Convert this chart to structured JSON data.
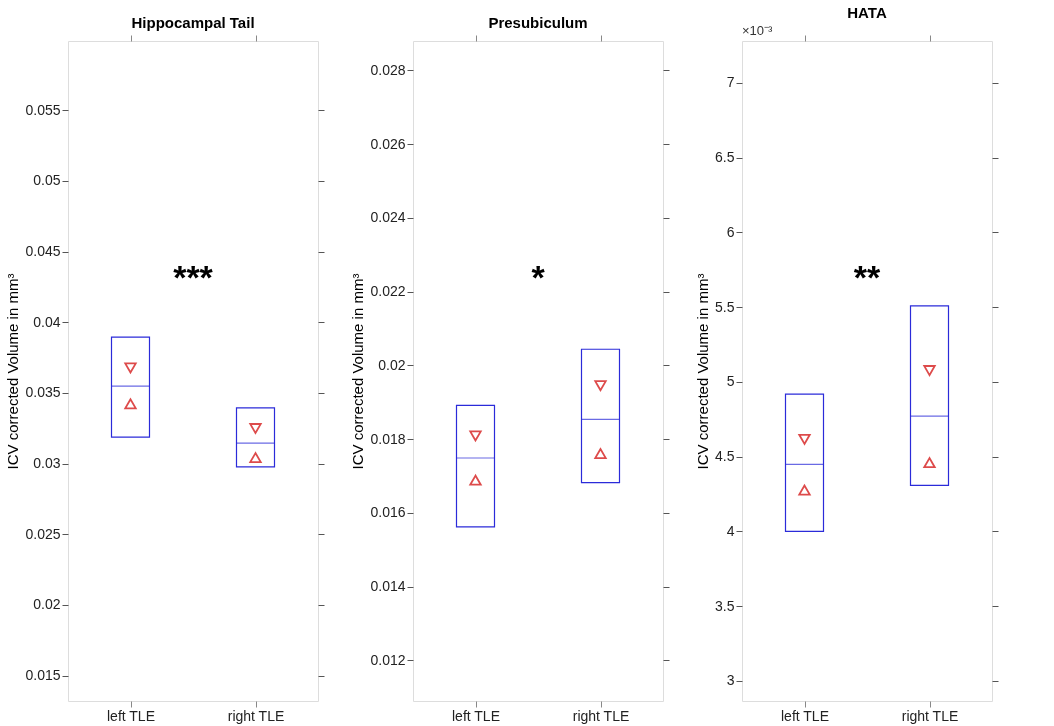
{
  "chart_data": [
    {
      "type": "box",
      "title": "Hippocampal Tail",
      "ylabel": "ICV corrected Volume in mm³",
      "categories": [
        "left TLE",
        "right TLE"
      ],
      "ylim": [
        0.0132,
        0.0599
      ],
      "yticks": [
        0.015,
        0.02,
        0.025,
        0.03,
        0.035,
        0.04,
        0.045,
        0.05,
        0.055
      ],
      "grid": false,
      "annotations": [
        "***"
      ],
      "series": [
        {
          "color": "#2b2bd9",
          "boxes": [
            {
              "low": 0.03187,
              "q1": 0.03187,
              "median": 0.03548,
              "q3": 0.03894,
              "high": 0.03894
            },
            {
              "low": 0.02977,
              "q1": 0.02977,
              "median": 0.03145,
              "q3": 0.03394,
              "high": 0.03394
            }
          ]
        },
        {
          "type": "scatter",
          "color": "#d00000",
          "marker": "triangle",
          "x": [
            "left TLE",
            "right TLE"
          ],
          "values": [
            0.03677,
            0.03248
          ]
        },
        {
          "type": "scatter",
          "color": "#d00000",
          "marker": "triangle",
          "x": [
            "left TLE",
            "right TLE"
          ],
          "values": [
            0.03423,
            0.03042
          ]
        }
      ]
    },
    {
      "type": "box",
      "title": "Presubiculum",
      "ylabel": "ICV corrected Volume in mm³",
      "categories": [
        "left TLE",
        "right TLE"
      ],
      "ylim": [
        0.0109,
        0.0288
      ],
      "yticks": [
        0.012,
        0.014,
        0.016,
        0.018,
        0.02,
        0.022,
        0.024,
        0.026,
        0.028
      ],
      "grid": false,
      "annotations": [
        "*"
      ],
      "series": [
        {
          "color": "#2b2bd9",
          "boxes": [
            {
              "low": 0.01562,
              "q1": 0.01562,
              "median": 0.01749,
              "q3": 0.01892,
              "high": 0.01892
            },
            {
              "low": 0.01682,
              "q1": 0.01682,
              "median": 0.01854,
              "q3": 0.02044,
              "high": 0.02044
            }
          ]
        },
        {
          "type": "scatter",
          "color": "#d00000",
          "marker": "triangle",
          "x": [
            "left TLE",
            "right TLE"
          ],
          "values": [
            0.01809,
            0.01945
          ]
        },
        {
          "type": "scatter",
          "color": "#d00000",
          "marker": "triangle",
          "x": [
            "left TLE",
            "right TLE"
          ],
          "values": [
            0.01689,
            0.01761
          ]
        }
      ]
    },
    {
      "type": "box",
      "title": "HATA",
      "ylabel": "ICV corrected Volume in mm³",
      "categories": [
        "left TLE",
        "right TLE"
      ],
      "ylim": [
        2.866,
        7.28
      ],
      "yticks": [
        3,
        3.5,
        4,
        4.5,
        5,
        5.5,
        6,
        6.5,
        7
      ],
      "grid": false,
      "annotations": [
        "**",
        "×10⁻³"
      ],
      "series": [
        {
          "color": "#2b2bd9",
          "boxes": [
            {
              "low": 4.0,
              "q1": 4.0,
              "median": 4.448,
              "q3": 4.918,
              "high": 4.918
            },
            {
              "low": 4.308,
              "q1": 4.308,
              "median": 4.771,
              "q3": 5.509,
              "high": 5.509
            }
          ]
        },
        {
          "type": "scatter",
          "color": "#d00000",
          "marker": "triangle",
          "x": [
            "left TLE",
            "right TLE"
          ],
          "values": [
            4.616,
            5.076
          ]
        },
        {
          "type": "scatter",
          "color": "#d00000",
          "marker": "triangle",
          "x": [
            "left TLE",
            "right TLE"
          ],
          "values": [
            4.277,
            4.46
          ]
        }
      ]
    }
  ]
}
